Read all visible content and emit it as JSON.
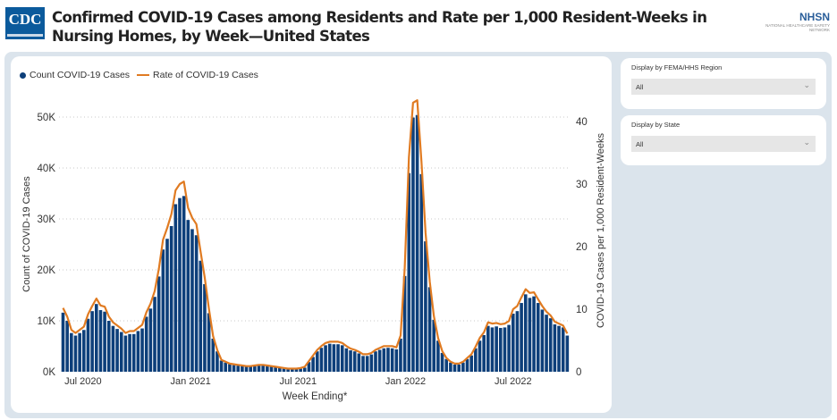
{
  "header": {
    "title": "Confirmed COVID-19 Cases among Residents and Rate per 1,000 Resident-Weeks in Nursing Homes, by Week—United States",
    "cdc_logo": "CDC",
    "nhsn_logo": "NHSN",
    "nhsn_subtitle": "NATIONAL HEALTHCARE SAFETY NETWORK"
  },
  "filters": [
    {
      "label": "Display by FEMA/HHS Region",
      "value": "All"
    },
    {
      "label": "Display by State",
      "value": "All"
    }
  ],
  "colors": {
    "bar": "#0d3f7a",
    "line": "#e07b22",
    "panel": "#dbe4ec"
  },
  "chart_data": {
    "type": "bar+line",
    "title": "",
    "legend": [
      "Count COVID-19 Cases",
      "Rate of COVID-19 Cases"
    ],
    "legend_position": "top-left",
    "xlabel": "Week Ending*",
    "ylabel": "Count of COVID-19 Cases",
    "y2label": "COVID-19 Cases per 1,000 Resident-Weeks",
    "ylim": [
      0,
      50
    ],
    "y_unit": "thousands",
    "y_ticks": [
      "0K",
      "10K",
      "20K",
      "30K",
      "40K",
      "50K"
    ],
    "y2lim": [
      0,
      40
    ],
    "y2_ticks": [
      "0",
      "10",
      "20",
      "30",
      "40"
    ],
    "grid": true,
    "x_ticks": [
      {
        "label": "Jul 2020",
        "week": 4.8
      },
      {
        "label": "Jan 2021",
        "week": 30.6
      },
      {
        "label": "Jul 2021",
        "week": 56.4
      },
      {
        "label": "Jan 2022",
        "week": 82.2
      },
      {
        "label": "Jul 2022",
        "week": 108
      }
    ],
    "series": [
      {
        "name": "Count COVID-19 Cases",
        "type": "bar",
        "values": [
          11.6,
          10.0,
          7.6,
          7.1,
          7.6,
          8.2,
          10.4,
          11.9,
          13.3,
          12.1,
          11.8,
          10.0,
          9.0,
          8.4,
          7.8,
          7.1,
          7.4,
          7.4,
          8.0,
          8.5,
          10.8,
          12.4,
          14.7,
          18.7,
          24.0,
          26.1,
          28.6,
          32.9,
          34.1,
          34.5,
          29.8,
          28.0,
          26.8,
          21.8,
          17.2,
          11.5,
          6.5,
          4.0,
          2.2,
          1.8,
          1.5,
          1.3,
          1.2,
          1.1,
          1.0,
          1.0,
          1.1,
          1.2,
          1.2,
          1.1,
          1.0,
          0.9,
          0.8,
          0.6,
          0.5,
          0.5,
          0.5,
          0.6,
          0.8,
          1.9,
          2.9,
          4.0,
          4.7,
          5.2,
          5.5,
          5.4,
          5.4,
          5.2,
          4.6,
          4.2,
          4.0,
          3.6,
          3.1,
          3.1,
          3.4,
          4.0,
          4.3,
          4.6,
          4.7,
          4.6,
          4.4,
          6.5,
          18.8,
          39.0,
          49.9,
          50.4,
          38.8,
          25.6,
          16.6,
          10.2,
          6.1,
          3.7,
          2.5,
          1.8,
          1.4,
          1.4,
          1.8,
          2.5,
          3.2,
          4.6,
          6.1,
          7.2,
          9.0,
          8.7,
          8.9,
          8.6,
          8.7,
          9.2,
          11.4,
          11.9,
          13.5,
          15.2,
          14.5,
          14.8,
          13.5,
          12.2,
          11.2,
          10.5,
          9.3,
          9.0,
          8.7,
          7.1
        ]
      },
      {
        "name": "Rate of COVID-19 Cases",
        "type": "line",
        "axis": "right",
        "values": [
          10.2,
          8.8,
          6.7,
          6.2,
          6.7,
          7.2,
          9.2,
          10.5,
          11.7,
          10.6,
          10.4,
          8.8,
          7.9,
          7.4,
          6.9,
          6.2,
          6.5,
          6.5,
          7.0,
          7.5,
          9.5,
          10.9,
          12.9,
          16.5,
          21.1,
          23.0,
          25.2,
          29.0,
          30.0,
          30.4,
          26.2,
          24.6,
          23.6,
          19.2,
          15.1,
          10.1,
          5.7,
          3.5,
          1.9,
          1.6,
          1.3,
          1.2,
          1.1,
          1.0,
          0.9,
          0.9,
          1.0,
          1.1,
          1.1,
          1.0,
          0.9,
          0.8,
          0.7,
          0.6,
          0.5,
          0.5,
          0.5,
          0.6,
          0.8,
          1.7,
          2.6,
          3.5,
          4.1,
          4.6,
          4.8,
          4.8,
          4.8,
          4.6,
          4.1,
          3.7,
          3.5,
          3.2,
          2.8,
          2.8,
          3.0,
          3.5,
          3.8,
          4.1,
          4.1,
          4.1,
          3.9,
          5.8,
          16.6,
          34.3,
          43.0,
          43.4,
          33.6,
          22.2,
          14.4,
          8.9,
          5.4,
          3.3,
          2.2,
          1.6,
          1.3,
          1.3,
          1.6,
          2.2,
          2.8,
          4.0,
          5.4,
          6.3,
          7.9,
          7.7,
          7.8,
          7.6,
          7.7,
          8.1,
          10.0,
          10.5,
          11.9,
          13.2,
          12.6,
          12.7,
          11.6,
          10.5,
          9.6,
          9.0,
          8.0,
          7.7,
          7.4,
          6.1
        ]
      }
    ]
  }
}
